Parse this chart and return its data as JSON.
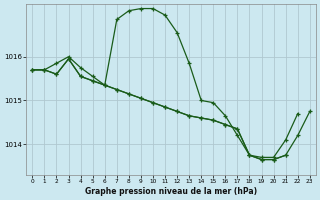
{
  "title": "Graphe pression niveau de la mer (hPa)",
  "background_color": "#cce8f0",
  "grid_color": "#b0c8d0",
  "line_color": "#1a5c1a",
  "xlim": [
    -0.5,
    23.5
  ],
  "ylim": [
    1013.3,
    1017.2
  ],
  "yticks": [
    1014,
    1015,
    1016
  ],
  "xticks": [
    0,
    1,
    2,
    3,
    4,
    5,
    6,
    7,
    8,
    9,
    10,
    11,
    12,
    13,
    14,
    15,
    16,
    17,
    18,
    19,
    20,
    21,
    22,
    23
  ],
  "series": [
    {
      "x": [
        0,
        1,
        2,
        3,
        4,
        5,
        6,
        7,
        8,
        9,
        10,
        11,
        12,
        13,
        14,
        15,
        16,
        17,
        18,
        19,
        20,
        21,
        22
      ],
      "y": [
        1015.7,
        1015.7,
        1015.85,
        1016.0,
        1015.75,
        1015.55,
        1015.35,
        1016.85,
        1017.05,
        1017.1,
        1017.1,
        1016.95,
        1016.55,
        1015.85,
        1015.0,
        1014.95,
        1014.65,
        1014.2,
        1013.75,
        1013.7,
        1013.7,
        1014.1,
        1014.7
      ]
    },
    {
      "x": [
        0,
        1,
        2,
        3,
        4,
        5,
        6,
        7,
        8,
        9,
        10,
        11,
        12,
        13,
        14,
        15,
        16,
        17,
        18,
        19,
        20,
        21
      ],
      "y": [
        1015.7,
        1015.7,
        1015.6,
        1015.95,
        1015.55,
        1015.45,
        1015.35,
        1015.25,
        1015.15,
        1015.05,
        1014.95,
        1014.85,
        1014.75,
        1014.65,
        1014.6,
        1014.55,
        1014.45,
        1014.35,
        1013.75,
        1013.65,
        1013.65,
        1013.75
      ]
    },
    {
      "x": [
        0,
        1,
        2,
        3,
        4,
        5,
        6,
        7,
        8,
        9,
        10,
        11,
        12,
        13,
        14,
        15,
        16,
        17,
        18,
        19,
        20,
        21,
        22,
        23
      ],
      "y": [
        1015.7,
        1015.7,
        1015.6,
        1015.95,
        1015.55,
        1015.45,
        1015.35,
        1015.25,
        1015.15,
        1015.05,
        1014.95,
        1014.85,
        1014.75,
        1014.65,
        1014.6,
        1014.55,
        1014.45,
        1014.35,
        1013.75,
        1013.65,
        1013.65,
        1013.75,
        1014.2,
        1014.75
      ]
    }
  ]
}
